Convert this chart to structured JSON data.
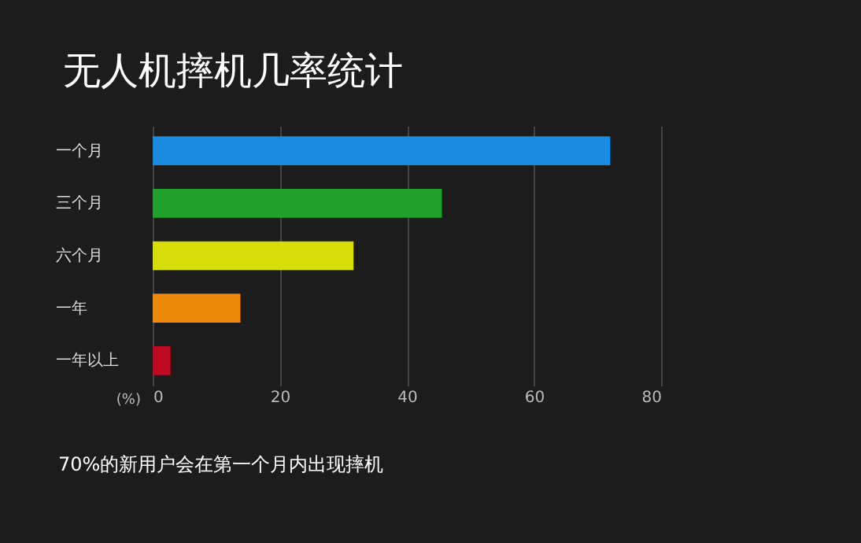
{
  "chart_data": {
    "type": "bar",
    "orientation": "horizontal",
    "title": "无人机摔机几率统计",
    "xlabel": "(%)",
    "categories": [
      "一个月",
      "三个月",
      "六个月",
      "一年",
      "一年以上"
    ],
    "values": [
      72,
      45.5,
      31.6,
      13.8,
      2.8
    ],
    "colors": [
      "#1a8be0",
      "#22a02c",
      "#d6dd08",
      "#ee8a0a",
      "#be0b22"
    ],
    "xlim": [
      0,
      80
    ],
    "xticks": [
      0,
      20,
      40,
      60,
      80
    ],
    "grid": "x",
    "annotations": [
      "70%的新用户会在第一个月内出现摔机"
    ]
  }
}
